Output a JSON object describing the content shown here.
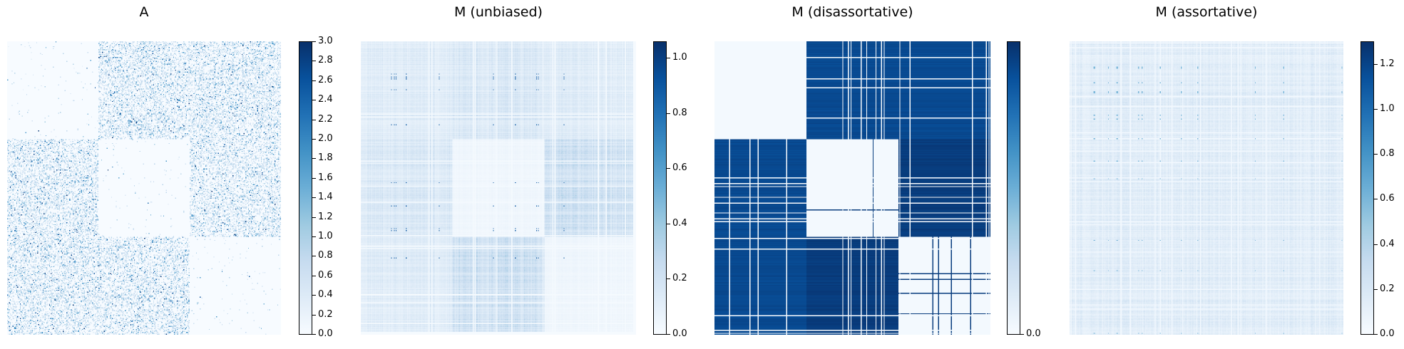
{
  "chart_data": [
    {
      "type": "heatmap",
      "title": "A",
      "n_nodes": 300,
      "blocks": [
        100,
        100,
        100
      ],
      "block_means": [
        [
          0.01,
          0.35,
          0.35
        ],
        [
          0.35,
          0.01,
          0.35
        ],
        [
          0.35,
          0.35,
          0.01
        ]
      ],
      "vmin": 0,
      "vmax": 3.0,
      "colormap": "Blues",
      "colorbar_ticks": [
        "0.0",
        "0.2",
        "0.4",
        "0.6",
        "0.8",
        "1.0",
        "1.2",
        "1.4",
        "1.6",
        "1.8",
        "2.0",
        "2.2",
        "2.4",
        "2.6",
        "2.8",
        "3.0"
      ]
    },
    {
      "type": "heatmap",
      "title": "M (unbiased)",
      "n_nodes": 300,
      "blocks": [
        100,
        100,
        100
      ],
      "block_means": [
        [
          0.12,
          0.15,
          0.12
        ],
        [
          0.15,
          0.04,
          0.2
        ],
        [
          0.12,
          0.2,
          0.04
        ]
      ],
      "vmin": 0,
      "vmax": 1.06,
      "colormap": "Blues",
      "colorbar_ticks": [
        "0.0",
        "0.2",
        "0.4",
        "0.6",
        "0.8",
        "1.0"
      ]
    },
    {
      "type": "heatmap",
      "title": "M (disassortative)",
      "n_nodes": 300,
      "blocks": [
        100,
        100,
        100
      ],
      "block_means": [
        [
          0.02,
          0.95,
          0.95
        ],
        [
          0.95,
          0.02,
          1.0
        ],
        [
          0.95,
          1.0,
          0.02
        ]
      ],
      "vmin": 0,
      "vmax": 1.05,
      "colormap": "Blues",
      "colorbar_ticks": [
        "0.0"
      ]
    },
    {
      "type": "heatmap",
      "title": "M (assortative)",
      "n_nodes": 300,
      "blocks": [
        100,
        100,
        100
      ],
      "block_means": [
        [
          0.14,
          0.14,
          0.14
        ],
        [
          0.14,
          0.14,
          0.14
        ],
        [
          0.14,
          0.14,
          0.14
        ]
      ],
      "vmin": 0,
      "vmax": 1.3,
      "colormap": "Blues",
      "colorbar_ticks": [
        "0.0",
        "0.2",
        "0.4",
        "0.6",
        "0.8",
        "1.0",
        "1.2"
      ]
    }
  ]
}
